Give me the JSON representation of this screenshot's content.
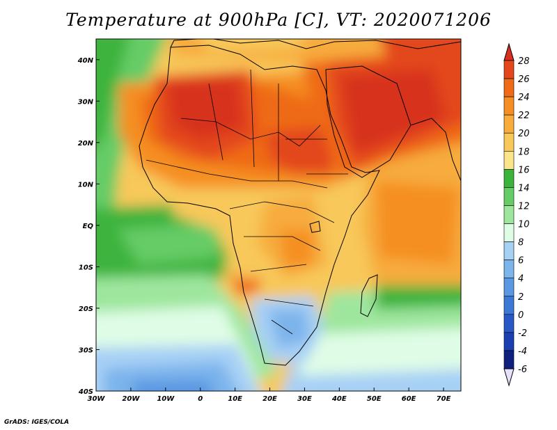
{
  "title": "Temperature at 900hPa [C], VT: 2020071206",
  "credit": "GrADS: IGES/COLA",
  "map": {
    "lon_labels": [
      "30W",
      "20W",
      "10W",
      "0",
      "10E",
      "20E",
      "30E",
      "40E",
      "50E",
      "60E",
      "70E"
    ],
    "lat_labels": [
      "40N",
      "30N",
      "20N",
      "10N",
      "EQ",
      "10S",
      "20S",
      "30S",
      "40S"
    ],
    "lon_range": [
      -30,
      75
    ],
    "lat_range": [
      -40,
      45
    ]
  },
  "colorbar": {
    "labels": [
      "28",
      "26",
      "24",
      "22",
      "20",
      "18",
      "16",
      "14",
      "12",
      "10",
      "8",
      "6",
      "4",
      "2",
      "0",
      "-2",
      "-4",
      "-6"
    ],
    "colors": [
      "#d7301f",
      "#e3471b",
      "#ef6a19",
      "#f58f23",
      "#f7ac3c",
      "#f8c85a",
      "#fbe58a",
      "#3cb43c",
      "#66cc66",
      "#9ee69e",
      "#dffde6",
      "#a7d0f5",
      "#7cb4ec",
      "#5a98e2",
      "#3c78d6",
      "#2858c6",
      "#1a3fb0",
      "#10207e",
      "#e6e0fb"
    ]
  }
}
